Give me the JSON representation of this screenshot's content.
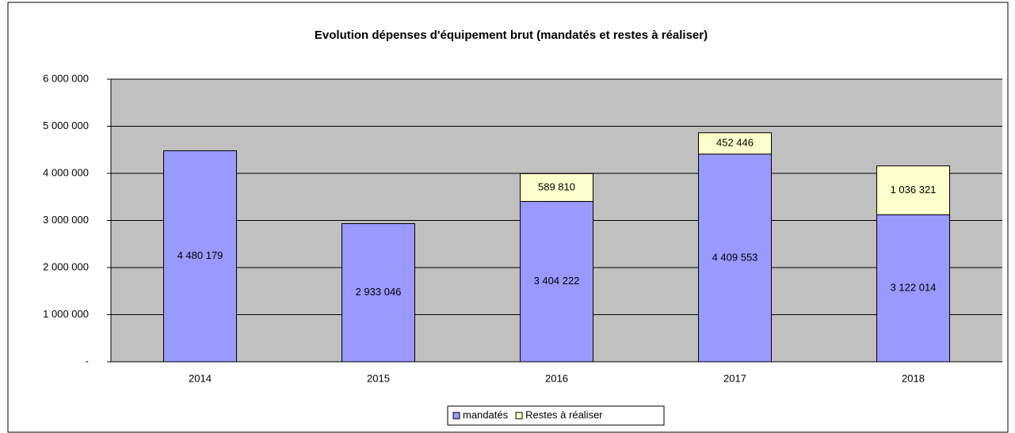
{
  "chart_data": {
    "type": "stacked_bar",
    "title": "Evolution dépenses d'équipement brut (mandatés et restes à réaliser)",
    "categories": [
      "2014",
      "2015",
      "2016",
      "2017",
      "2018"
    ],
    "series": [
      {
        "name": "mandatés",
        "color": "#9999ff",
        "values": [
          4480179,
          2933046,
          3404222,
          4409553,
          3122014
        ],
        "value_labels": [
          "4 480 179",
          "2 933 046",
          "3 404 222",
          "4 409 553",
          "3 122 014"
        ]
      },
      {
        "name": "Restes à réaliser",
        "color": "#ffffcc",
        "values": [
          null,
          null,
          589810,
          452446,
          1036321
        ],
        "value_labels": [
          null,
          null,
          "589 810",
          "452 446",
          "1 036 321"
        ]
      }
    ],
    "ylim": [
      0,
      6000000
    ],
    "yticks": [
      {
        "value": 0,
        "label": "-"
      },
      {
        "value": 1000000,
        "label": "1 000 000"
      },
      {
        "value": 2000000,
        "label": "2 000 000"
      },
      {
        "value": 3000000,
        "label": "3 000 000"
      },
      {
        "value": 4000000,
        "label": "4 000 000"
      },
      {
        "value": 5000000,
        "label": "5 000 000"
      },
      {
        "value": 6000000,
        "label": "6 000 000"
      }
    ],
    "grid": true,
    "legend": "bottom"
  }
}
